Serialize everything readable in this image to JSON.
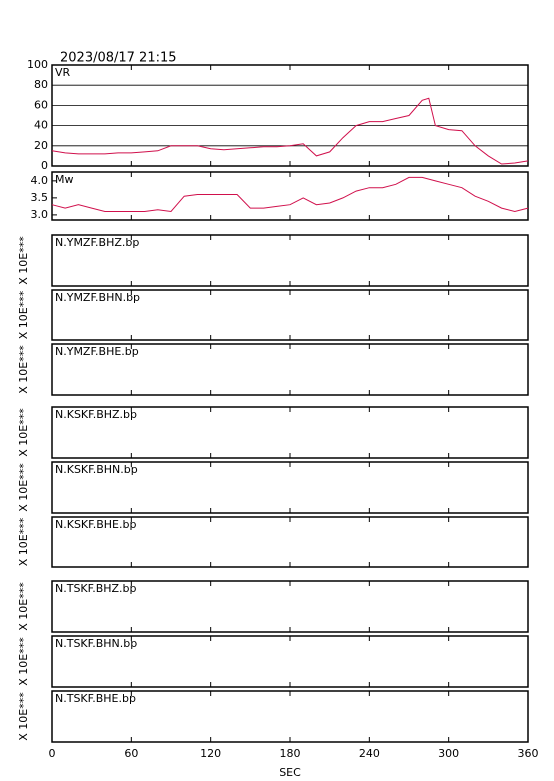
{
  "chart_data": {
    "type": "line",
    "title": "2023/08/17 21:15",
    "xlabel": "SEC",
    "xlim": [
      0,
      360
    ],
    "xticks": [
      0,
      60,
      120,
      180,
      240,
      300,
      360
    ],
    "panels": [
      {
        "label": "VR",
        "ylim": [
          0,
          100
        ],
        "yticks": [
          0,
          20,
          40,
          60,
          80,
          100
        ],
        "grid": true,
        "series": [
          {
            "color": "#d0104c",
            "x": [
              0,
              10,
              20,
              30,
              40,
              50,
              60,
              70,
              80,
              90,
              100,
              110,
              120,
              130,
              140,
              150,
              160,
              170,
              180,
              190,
              200,
              210,
              220,
              230,
              240,
              250,
              260,
              270,
              280,
              285,
              290,
              300,
              310,
              320,
              330,
              340,
              350,
              360
            ],
            "values": [
              15,
              13,
              12,
              12,
              12,
              13,
              13,
              14,
              15,
              20,
              20,
              20,
              17,
              16,
              17,
              18,
              19,
              19,
              20,
              22,
              10,
              14,
              28,
              40,
              44,
              44,
              47,
              50,
              65,
              67,
              40,
              36,
              35,
              20,
              10,
              2,
              3,
              5
            ]
          }
        ]
      },
      {
        "label": "Mw",
        "ylim": [
          2.85,
          4.26
        ],
        "yticks": [
          {
            "value": 3,
            "label": "3.0"
          },
          {
            "value": 3.5,
            "label": "3.5"
          },
          {
            "value": 4,
            "label": "4.0"
          }
        ],
        "grid": false,
        "series": [
          {
            "color": "#d0104c",
            "x": [
              0,
              10,
              20,
              30,
              40,
              50,
              60,
              70,
              80,
              90,
              100,
              110,
              120,
              130,
              140,
              150,
              160,
              170,
              180,
              190,
              200,
              210,
              220,
              230,
              240,
              250,
              260,
              270,
              280,
              290,
              300,
              310,
              320,
              330,
              340,
              350,
              360
            ],
            "values": [
              3.3,
              3.2,
              3.3,
              3.2,
              3.1,
              3.1,
              3.1,
              3.1,
              3.15,
              3.1,
              3.55,
              3.6,
              3.6,
              3.6,
              3.6,
              3.2,
              3.2,
              3.25,
              3.3,
              3.5,
              3.3,
              3.35,
              3.5,
              3.7,
              3.8,
              3.8,
              3.9,
              4.1,
              4.1,
              4.0,
              3.9,
              3.8,
              3.55,
              3.4,
              3.2,
              3.1,
              3.2
            ]
          }
        ]
      },
      {
        "label": "N.YMZF.BHZ.bp",
        "ylabel": "X 10E***"
      },
      {
        "label": "N.YMZF.BHN.bp",
        "ylabel": "X 10E***"
      },
      {
        "label": "N.YMZF.BHE.bp",
        "ylabel": "X 10E***"
      },
      {
        "label": "N.KSKF.BHZ.bp",
        "ylabel": "X 10E***"
      },
      {
        "label": "N.KSKF.BHN.bp",
        "ylabel": "X 10E***"
      },
      {
        "label": "N.KSKF.BHE.bp",
        "ylabel": "X 10E***"
      },
      {
        "label": "N.TSKF.BHZ.bp",
        "ylabel": "X 10E***"
      },
      {
        "label": "N.TSKF.BHN.bp",
        "ylabel": "X 10E***"
      },
      {
        "label": "N.TSKF.BHE.bp",
        "ylabel": "X 10E***"
      }
    ]
  }
}
